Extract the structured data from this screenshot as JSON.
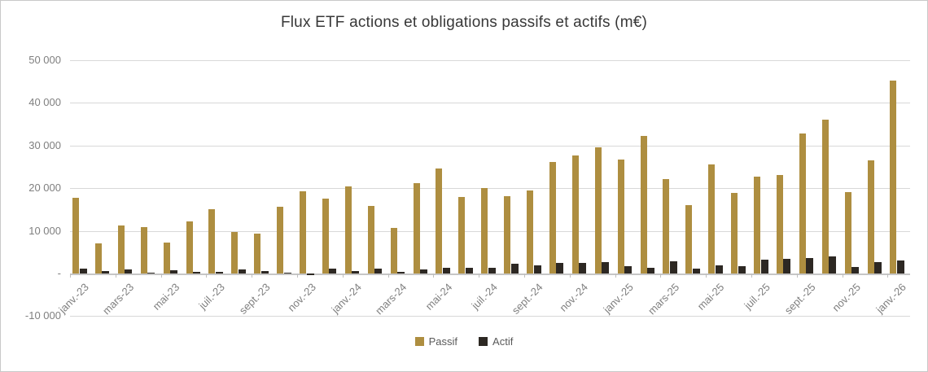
{
  "chart_data": {
    "type": "bar",
    "title": "Flux ETF actions et obligations passifs et actifs (m€)",
    "xlabel": "",
    "ylabel": "",
    "ylim": [
      -10000,
      50000
    ],
    "grid": true,
    "legend_position": "bottom",
    "categories": [
      "janv.-23",
      "févr.-23",
      "mars-23",
      "avr.-23",
      "mai-23",
      "juin-23",
      "juil.-23",
      "août-23",
      "sept.-23",
      "oct.-23",
      "nov.-23",
      "déc.-23",
      "janv.-24",
      "févr.-24",
      "mars-24",
      "avr.-24",
      "mai-24",
      "juin-24",
      "juil.-24",
      "août-24",
      "sept.-24",
      "oct.-24",
      "nov.-24",
      "déc.-24",
      "janv.-25",
      "févr.-25",
      "mars-25",
      "avr.-25",
      "mai-25",
      "juin-25",
      "juil.-25",
      "août-25",
      "sept.-25",
      "oct.-25",
      "nov.-25",
      "déc.-25",
      "janv.-26"
    ],
    "x_tick_labels": [
      "janv.-23",
      "mars-23",
      "mai-23",
      "juil.-23",
      "sept.-23",
      "nov.-23",
      "janv.-24",
      "mars-24",
      "mai-24",
      "juil.-24",
      "sept.-24",
      "nov.-24",
      "janv.-25",
      "mars-25",
      "mai-25",
      "juil.-25",
      "sept.-25",
      "nov.-25",
      "janv.-26"
    ],
    "y_ticks": [
      {
        "value": 50000,
        "label": "50 000"
      },
      {
        "value": 40000,
        "label": "40 000"
      },
      {
        "value": 30000,
        "label": "30 000"
      },
      {
        "value": 20000,
        "label": "20 000"
      },
      {
        "value": 10000,
        "label": "10 000"
      },
      {
        "value": 0,
        "label": "-"
      },
      {
        "value": -10000,
        "label": "-10 000"
      }
    ],
    "series": [
      {
        "name": "Passif",
        "color": "#AE8E40",
        "values": [
          17700,
          7000,
          11300,
          10800,
          7300,
          12200,
          15000,
          9800,
          9300,
          15700,
          19200,
          17500,
          20500,
          15900,
          10700,
          21100,
          24600,
          17900,
          20100,
          18200,
          19500,
          26200,
          27600,
          29600,
          26800,
          32200,
          22200,
          16000,
          25600,
          18900,
          22700,
          23100,
          32800,
          36000,
          19000,
          26500,
          45300
        ]
      },
      {
        "name": "Actif",
        "color": "#2D2823",
        "values": [
          1200,
          500,
          1000,
          100,
          800,
          300,
          400,
          1000,
          600,
          100,
          -400,
          1100,
          500,
          1100,
          400,
          900,
          1300,
          1300,
          1400,
          2200,
          2000,
          2400,
          2500,
          2700,
          1800,
          1300,
          2900,
          1200,
          1900,
          1800,
          3300,
          3500,
          3600,
          4000,
          1600,
          2700,
          3100
        ]
      }
    ]
  }
}
